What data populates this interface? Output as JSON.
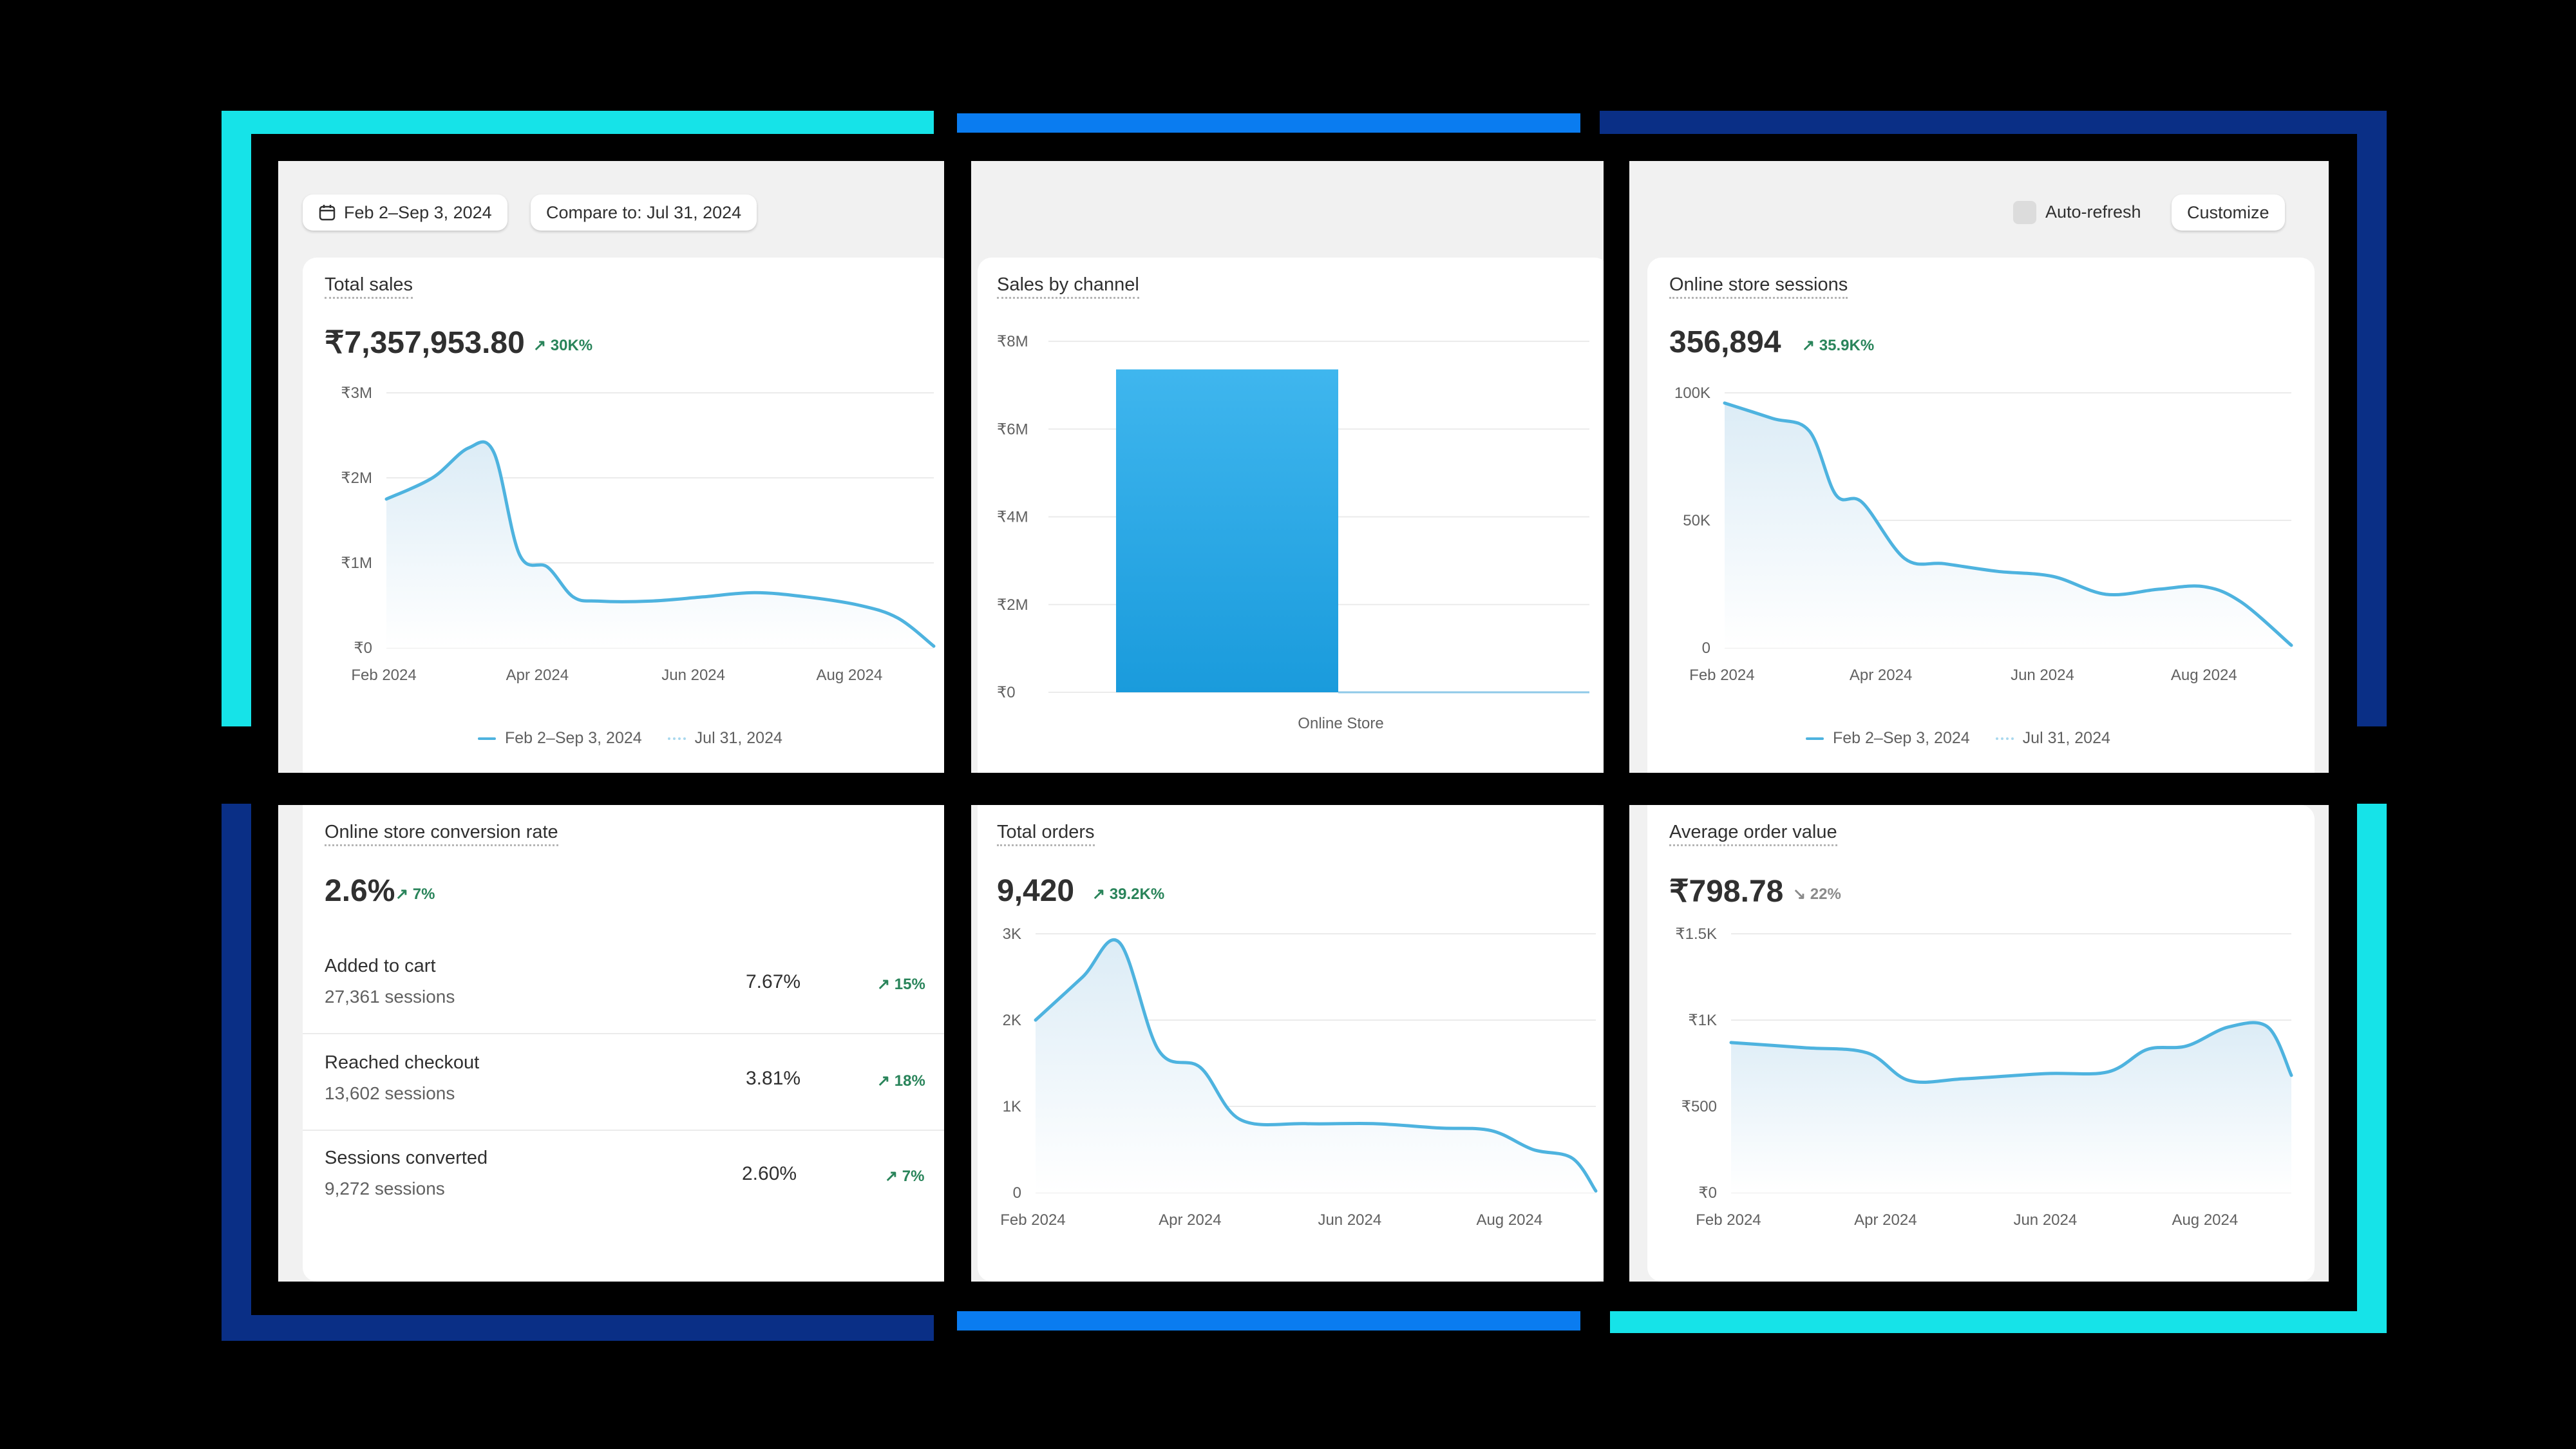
{
  "toolbar": {
    "date_range": "Feb 2–Sep 3, 2024",
    "compare": "Compare to: Jul 31, 2024",
    "auto_refresh": "Auto-refresh",
    "customize": "Customize"
  },
  "colors": {
    "line": "#4eb3df",
    "bar": "#2aa8e6",
    "positive": "#29845a",
    "frame_cyan": "#16e3e8",
    "frame_blue": "#0a7cf0",
    "frame_navy": "#0a2f86"
  },
  "icons": [
    "calendar-icon",
    "arrow-up-right-icon"
  ],
  "cards": {
    "total_sales": {
      "title": "Total sales",
      "value": "₹7,357,953.80",
      "delta": "↗ 30K%",
      "legend_current": "Feb 2–Sep 3, 2024",
      "legend_compare": "Jul 31, 2024"
    },
    "sales_by_channel": {
      "title": "Sales by channel"
    },
    "sessions": {
      "title": "Online store sessions",
      "value": "356,894",
      "delta": "↗ 35.9K%",
      "legend_current": "Feb 2–Sep 3, 2024",
      "legend_compare": "Jul 31, 2024"
    },
    "conversion": {
      "title": "Online store conversion rate",
      "value": "2.6%",
      "delta": "↗ 7%",
      "rows": [
        {
          "label": "Added to cart",
          "sub": "27,361 sessions",
          "value": "7.67%",
          "delta": "↗ 15%"
        },
        {
          "label": "Reached checkout",
          "sub": "13,602 sessions",
          "value": "3.81%",
          "delta": "↗ 18%"
        },
        {
          "label": "Sessions converted",
          "sub": "9,272 sessions",
          "value": "2.60%",
          "delta": "↗ 7%"
        }
      ]
    },
    "orders": {
      "title": "Total orders",
      "value": "9,420",
      "delta": "↗ 39.2K%"
    },
    "aov": {
      "title": "Average order value",
      "value": "₹798.78",
      "delta": "↘ 22%"
    }
  },
  "chart_data": [
    {
      "id": "total_sales",
      "type": "area",
      "x": [
        "2024-02-02",
        "2024-02-20",
        "2024-03-05",
        "2024-03-15",
        "2024-03-25",
        "2024-04-05",
        "2024-04-15",
        "2024-04-25",
        "2024-05-15",
        "2024-06-05",
        "2024-06-25",
        "2024-07-15",
        "2024-08-05",
        "2024-08-20",
        "2024-09-03"
      ],
      "values": [
        1.75,
        2.0,
        2.35,
        2.3,
        1.1,
        0.95,
        0.6,
        0.55,
        0.55,
        0.6,
        0.65,
        0.6,
        0.5,
        0.35,
        0.02
      ],
      "ylim": [
        0,
        3
      ],
      "yticks": [
        "₹0",
        "₹1M",
        "₹2M",
        "₹3M"
      ],
      "xticks": [
        "Feb 2024",
        "Apr 2024",
        "Jun 2024",
        "Aug 2024"
      ],
      "series": [
        {
          "name": "Feb 2–Sep 3, 2024"
        },
        {
          "name": "Jul 31, 2024"
        }
      ]
    },
    {
      "id": "sales_by_channel",
      "type": "bar",
      "categories": [
        "Online Store"
      ],
      "values": [
        7.36
      ],
      "ylim": [
        0,
        8
      ],
      "yticks": [
        "₹0",
        "₹2M",
        "₹4M",
        "₹6M",
        "₹8M"
      ]
    },
    {
      "id": "sessions",
      "type": "area",
      "x": [
        "2024-02-02",
        "2024-02-20",
        "2024-03-05",
        "2024-03-15",
        "2024-03-25",
        "2024-04-10",
        "2024-04-25",
        "2024-05-15",
        "2024-06-05",
        "2024-06-25",
        "2024-07-15",
        "2024-08-01",
        "2024-08-15",
        "2024-09-03"
      ],
      "values": [
        96,
        90,
        85,
        60,
        57,
        35,
        33,
        30,
        28,
        21,
        23,
        24,
        18,
        1
      ],
      "ylim": [
        0,
        100
      ],
      "yticks": [
        "0",
        "50K",
        "100K"
      ],
      "xticks": [
        "Feb 2024",
        "Apr 2024",
        "Jun 2024",
        "Aug 2024"
      ],
      "series": [
        {
          "name": "Feb 2–Sep 3, 2024"
        },
        {
          "name": "Jul 31, 2024"
        }
      ]
    },
    {
      "id": "orders",
      "type": "area",
      "x": [
        "2024-02-02",
        "2024-02-20",
        "2024-03-05",
        "2024-03-20",
        "2024-04-05",
        "2024-04-20",
        "2024-05-15",
        "2024-06-10",
        "2024-07-05",
        "2024-07-25",
        "2024-08-10",
        "2024-08-25",
        "2024-09-03"
      ],
      "values": [
        2.0,
        2.5,
        2.9,
        1.65,
        1.45,
        0.85,
        0.8,
        0.8,
        0.75,
        0.72,
        0.5,
        0.4,
        0.02
      ],
      "ylim": [
        0,
        3
      ],
      "yticks": [
        "0",
        "1K",
        "2K",
        "3K"
      ],
      "xticks": [
        "Feb 2024",
        "Apr 2024",
        "Jun 2024",
        "Aug 2024"
      ]
    },
    {
      "id": "aov",
      "type": "area",
      "x": [
        "2024-02-02",
        "2024-03-01",
        "2024-03-25",
        "2024-04-10",
        "2024-05-01",
        "2024-06-01",
        "2024-06-25",
        "2024-07-10",
        "2024-07-25",
        "2024-08-10",
        "2024-08-25",
        "2024-09-03"
      ],
      "values": [
        870,
        840,
        810,
        650,
        660,
        690,
        700,
        830,
        850,
        960,
        960,
        680
      ],
      "ylim": [
        0,
        1500
      ],
      "yticks": [
        "₹0",
        "₹500",
        "₹1K",
        "₹1.5K"
      ],
      "xticks": [
        "Feb 2024",
        "Apr 2024",
        "Jun 2024",
        "Aug 2024"
      ]
    }
  ]
}
